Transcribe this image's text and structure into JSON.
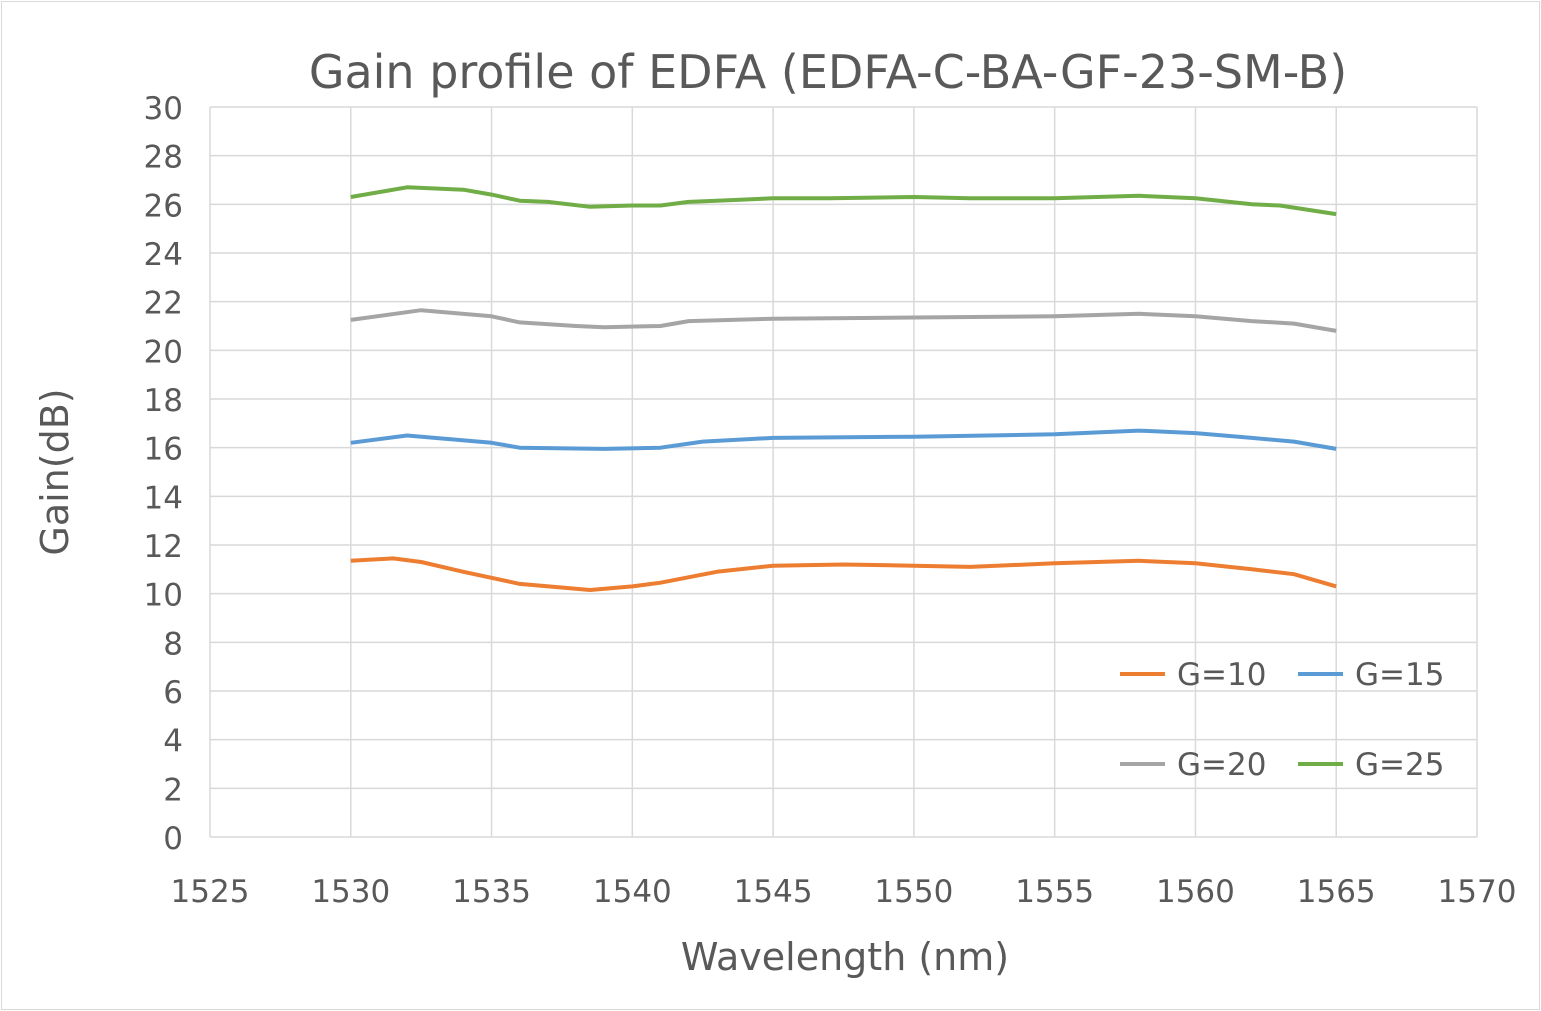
{
  "chart_data": {
    "type": "line",
    "title": "Gain profile of EDFA (EDFA-C-BA-GF-23-SM-B)",
    "xlabel": "Wavelength (nm)",
    "ylabel": "Gain(dB)",
    "xlim": [
      1525,
      1570
    ],
    "ylim": [
      0,
      30
    ],
    "xticks": [
      1525,
      1530,
      1535,
      1540,
      1545,
      1550,
      1555,
      1560,
      1565,
      1570
    ],
    "yticks": [
      0,
      2,
      4,
      6,
      8,
      10,
      12,
      14,
      16,
      18,
      20,
      22,
      24,
      26,
      28,
      30
    ],
    "grid": true,
    "legend_position": "bottom-right inside",
    "series": [
      {
        "name": "G=10",
        "color": "#ED7D31",
        "x": [
          1530,
          1531.5,
          1532.5,
          1534,
          1536,
          1538.5,
          1540,
          1541,
          1543,
          1545,
          1547.5,
          1550,
          1552,
          1555,
          1558,
          1560,
          1562,
          1563.5,
          1565
        ],
        "y": [
          11.35,
          11.45,
          11.3,
          10.9,
          10.4,
          10.15,
          10.3,
          10.45,
          10.9,
          11.15,
          11.2,
          11.15,
          11.1,
          11.25,
          11.35,
          11.25,
          11.0,
          10.8,
          10.3
        ]
      },
      {
        "name": "G=15",
        "color": "#5B9BD5",
        "x": [
          1530,
          1532,
          1535,
          1536,
          1539,
          1541,
          1542.5,
          1545,
          1550,
          1555,
          1558,
          1560,
          1562,
          1563.5,
          1565
        ],
        "y": [
          16.2,
          16.5,
          16.2,
          16.0,
          15.95,
          16.0,
          16.25,
          16.4,
          16.45,
          16.55,
          16.7,
          16.6,
          16.4,
          16.25,
          15.95
        ]
      },
      {
        "name": "G=20",
        "color": "#A5A5A5",
        "x": [
          1530,
          1532.5,
          1535,
          1536,
          1538,
          1539,
          1541,
          1542,
          1545,
          1550,
          1555,
          1558,
          1560,
          1562,
          1563.5,
          1565
        ],
        "y": [
          21.25,
          21.65,
          21.4,
          21.15,
          21.0,
          20.95,
          21.0,
          21.2,
          21.3,
          21.35,
          21.4,
          21.5,
          21.4,
          21.2,
          21.1,
          20.8
        ]
      },
      {
        "name": "G=25",
        "color": "#70AD47",
        "x": [
          1530,
          1532,
          1534,
          1535,
          1536,
          1537,
          1538.5,
          1540,
          1541,
          1542,
          1543,
          1545,
          1547,
          1550,
          1552,
          1555,
          1558,
          1560,
          1562,
          1563,
          1565
        ],
        "y": [
          26.3,
          26.7,
          26.6,
          26.4,
          26.15,
          26.1,
          25.9,
          25.95,
          25.95,
          26.1,
          26.15,
          26.25,
          26.25,
          26.3,
          26.25,
          26.25,
          26.35,
          26.25,
          26.0,
          25.95,
          25.6
        ]
      }
    ]
  }
}
